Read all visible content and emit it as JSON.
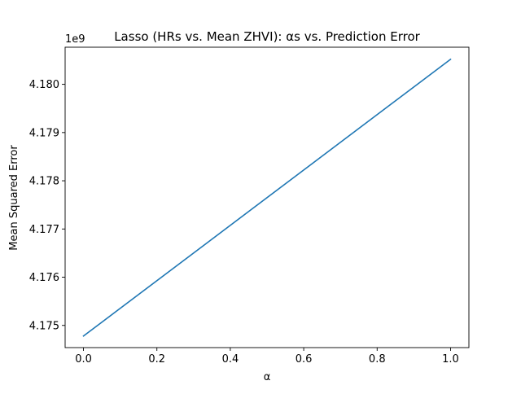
{
  "chart_data": {
    "type": "line",
    "title": "Lasso (HRs vs. Mean ZHVI): αs vs. Prediction Error",
    "xlabel": "α",
    "ylabel": "Mean Squared Error",
    "y_offset_label": "1e9",
    "xlim": [
      -0.05,
      1.05
    ],
    "ylim": [
      4.17454,
      4.18077
    ],
    "x_ticks": [
      0.0,
      0.2,
      0.4,
      0.6,
      0.8,
      1.0
    ],
    "x_tick_labels": [
      "0.0",
      "0.2",
      "0.4",
      "0.6",
      "0.8",
      "1.0"
    ],
    "y_ticks": [
      4.175,
      4.176,
      4.177,
      4.178,
      4.179,
      4.18
    ],
    "y_tick_labels": [
      "4.175",
      "4.176",
      "4.177",
      "4.178",
      "4.179",
      "4.180"
    ],
    "grid": false,
    "legend": "none",
    "series": [
      {
        "color": "#1f77b4",
        "x": [
          0.0,
          1.0
        ],
        "y": [
          4.17478,
          4.18052
        ]
      }
    ]
  }
}
